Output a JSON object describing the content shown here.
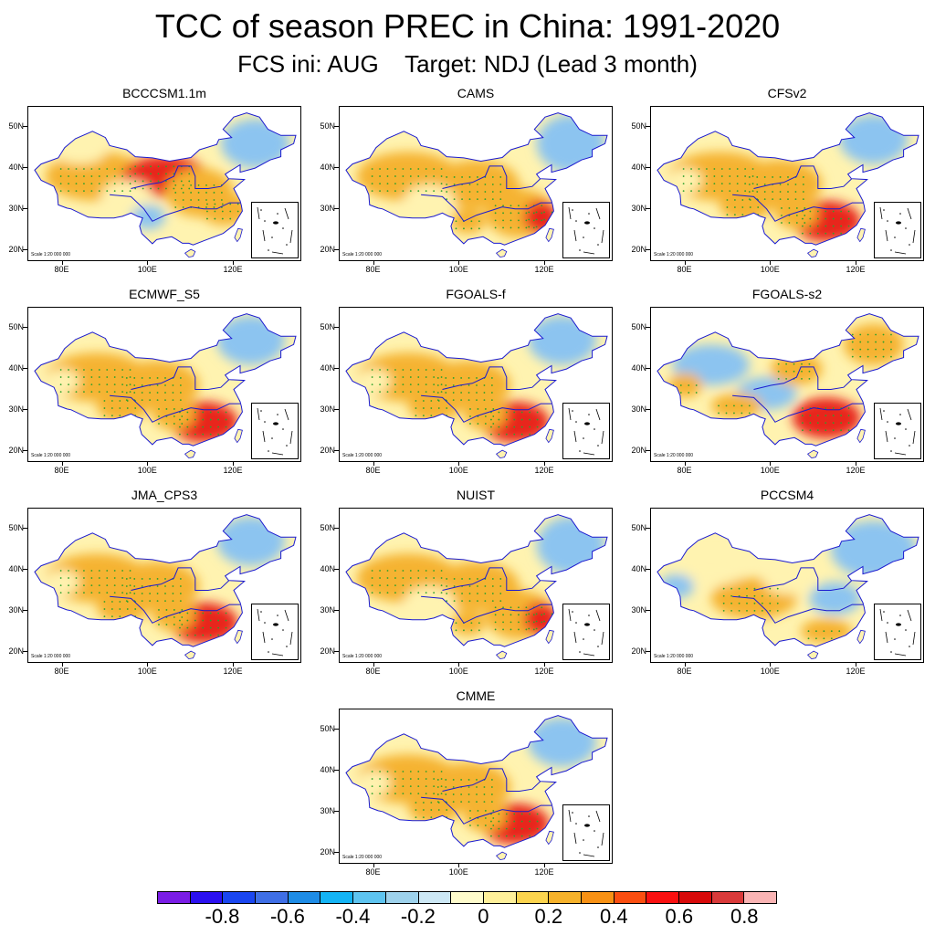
{
  "title": "TCC of season PREC in China: 1991-2020",
  "subtitle": "FCS ini: AUG    Target: NDJ (Lead 3 month)",
  "axes": {
    "y_labels": [
      "50N",
      "40N",
      "30N",
      "20N"
    ],
    "y_values": [
      50,
      40,
      30,
      20
    ],
    "x_labels": [
      "80E",
      "100E",
      "120E"
    ],
    "x_values": [
      80,
      100,
      120
    ],
    "lon_range": [
      72,
      136
    ],
    "lat_range": [
      17,
      55
    ]
  },
  "scale_text": "Scale 1:20 000 000",
  "colors": {
    "strong_negative": "#1e50e6",
    "negative": "#8cc4f0",
    "near_zero": "#fff3b0",
    "positive": "#f5b331",
    "strong_positive": "#e8261a",
    "stipple": "#2ca02c",
    "boundary": "#1a1ad0"
  },
  "panels": [
    {
      "name": "BCCCSM1.1m",
      "pattern": "north_central"
    },
    {
      "name": "CAMS",
      "pattern": "warm_south"
    },
    {
      "name": "CFSv2",
      "pattern": "south_red"
    },
    {
      "name": "ECMWF_S5",
      "pattern": "south_red"
    },
    {
      "name": "FGOALS-f",
      "pattern": "south_red"
    },
    {
      "name": "FGOALS-s2",
      "pattern": "mixed_south"
    },
    {
      "name": "JMA_CPS3",
      "pattern": "south_red"
    },
    {
      "name": "NUIST",
      "pattern": "warm_south"
    },
    {
      "name": "PCCSM4",
      "pattern": "cool_north"
    },
    {
      "name": "CMME",
      "pattern": "south_red"
    }
  ],
  "colorbar": {
    "colors": [
      "#7a1de6",
      "#2b10f0",
      "#1a46f0",
      "#3f6fe6",
      "#1e8ce6",
      "#14b4f5",
      "#5ec4f0",
      "#9ed2ec",
      "#cde8f5",
      "#fffccc",
      "#fff09a",
      "#fcd44e",
      "#f6b22b",
      "#f89114",
      "#fb4e10",
      "#fa1010",
      "#d80a0a",
      "#d93a3a",
      "#fab4b4"
    ],
    "labels": [
      "-0.8",
      "-0.6",
      "-0.4",
      "-0.2",
      "0",
      "0.2",
      "0.4",
      "0.6",
      "0.8"
    ]
  }
}
